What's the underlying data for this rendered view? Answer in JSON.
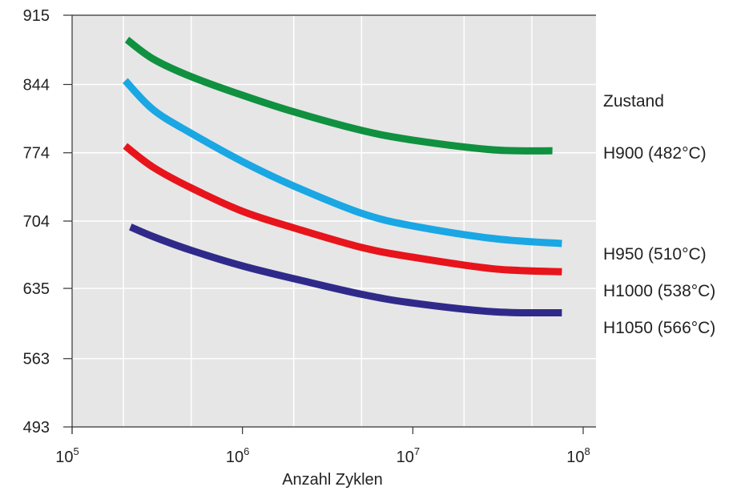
{
  "chart_data": {
    "type": "line",
    "title": "",
    "xlabel": "Anzahl Zyklen",
    "ylabel": "",
    "x_scale": "log",
    "xlim": [
      100000,
      100000000
    ],
    "ylim": [
      493,
      915
    ],
    "x_ticks": [
      {
        "value": 100000,
        "base": "10",
        "exp": "5"
      },
      {
        "value": 1000000,
        "base": "10",
        "exp": "6"
      },
      {
        "value": 10000000,
        "base": "10",
        "exp": "7"
      },
      {
        "value": 100000000,
        "base": "10",
        "exp": "8"
      }
    ],
    "y_ticks": [
      {
        "value": 915,
        "label": "915"
      },
      {
        "value": 844,
        "label": "844"
      },
      {
        "value": 774,
        "label": "774"
      },
      {
        "value": 704,
        "label": "704"
      },
      {
        "value": 635,
        "label": "635"
      },
      {
        "value": 563,
        "label": "563"
      },
      {
        "value": 493,
        "label": "493"
      }
    ],
    "grid": true,
    "legend_title": "Zustand",
    "legend_placement": "right",
    "series": [
      {
        "name": "H900 (482°C)",
        "color": "#0f9140",
        "x": [
          210000,
          300000,
          500000,
          1000000,
          2000000,
          5000000,
          10000000,
          30000000,
          66000000
        ],
        "y": [
          890,
          870,
          852,
          833,
          816,
          797,
          787,
          777,
          776
        ]
      },
      {
        "name": "H950 (510°C)",
        "color": "#1aa7e4",
        "x": [
          205000,
          300000,
          500000,
          1000000,
          2000000,
          5000000,
          10000000,
          30000000,
          75000000
        ],
        "y": [
          848,
          818,
          794,
          765,
          740,
          712,
          699,
          686,
          681
        ]
      },
      {
        "name": "H1000 (538°C)",
        "color": "#e8141b",
        "x": [
          205000,
          300000,
          500000,
          1000000,
          2000000,
          5000000,
          10000000,
          30000000,
          75000000
        ],
        "y": [
          781,
          759,
          738,
          714,
          697,
          677,
          667,
          655,
          652
        ]
      },
      {
        "name": "H1050 (566°C)",
        "color": "#2f2a8a",
        "x": [
          220000,
          300000,
          500000,
          1000000,
          2000000,
          5000000,
          10000000,
          30000000,
          75000000
        ],
        "y": [
          698,
          688,
          674,
          658,
          645,
          629,
          620,
          611,
          610
        ]
      }
    ]
  }
}
